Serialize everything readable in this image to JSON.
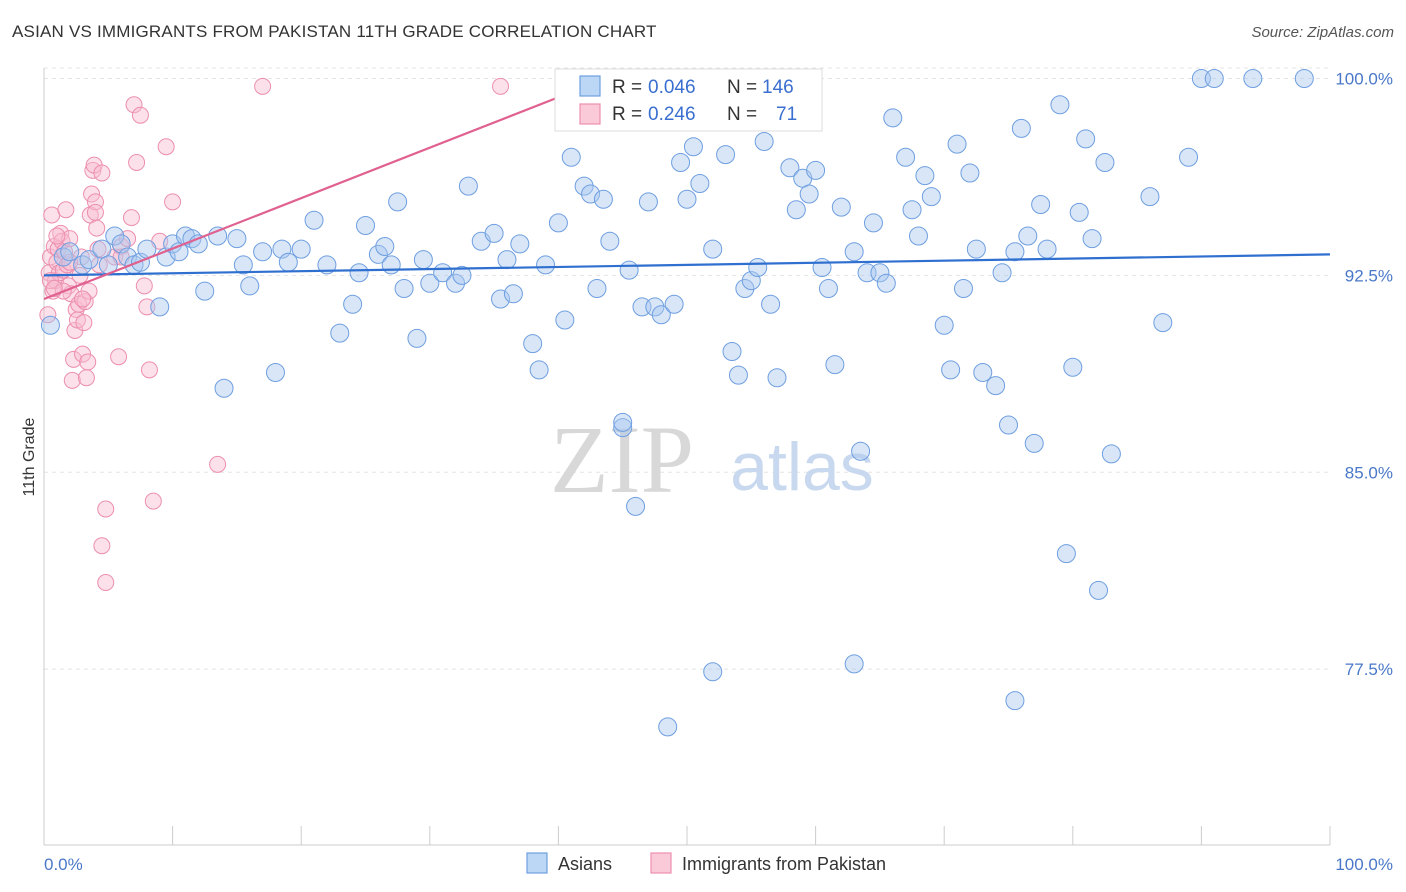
{
  "title": "ASIAN VS IMMIGRANTS FROM PAKISTAN 11TH GRADE CORRELATION CHART",
  "source": "Source: ZipAtlas.com",
  "watermark": {
    "zip": "ZIP",
    "atlas": "atlas"
  },
  "colors": {
    "asian_fill": "#a8c8f0",
    "asian_stroke": "#6f9fe0",
    "asian_line": "#2f6fcf",
    "pak_fill": "#f8bcd0",
    "pak_stroke": "#ec8fae",
    "pak_line": "#e0608f",
    "tick_text": "#4a78c8",
    "grid": "#e4e4e4"
  },
  "stats": {
    "asian": {
      "r_label": "R =",
      "r_value": "0.046",
      "n_label": "N =",
      "n_value": "146"
    },
    "pak": {
      "r_label": "R =",
      "r_value": "0.246",
      "n_label": "N =",
      "n_value": "71"
    }
  },
  "chart_data": {
    "type": "scatter",
    "title": "ASIAN VS IMMIGRANTS FROM PAKISTAN 11TH GRADE CORRELATION CHART",
    "xlabel": "",
    "ylabel": "11th Grade",
    "xlim": [
      0,
      100
    ],
    "ylim": [
      70.8,
      100.4
    ],
    "x_tick_labels": [
      "0.0%",
      "100.0%"
    ],
    "y_ticks": [
      77.5,
      85.0,
      92.5,
      100.0
    ],
    "y_tick_labels": [
      "77.5%",
      "85.0%",
      "92.5%",
      "100.0%"
    ],
    "grid": true,
    "legend_position": "bottom-center",
    "series": [
      {
        "name": "Asians",
        "trend": {
          "x": [
            0,
            100
          ],
          "y": [
            92.5,
            93.3
          ]
        },
        "points": [
          [
            0.5,
            90.6
          ],
          [
            1.5,
            93.2
          ],
          [
            2,
            93.4
          ],
          [
            3,
            92.9
          ],
          [
            3.5,
            93.1
          ],
          [
            4.5,
            93.5
          ],
          [
            5,
            92.9
          ],
          [
            5.5,
            94.0
          ],
          [
            6,
            93.7
          ],
          [
            6.5,
            93.2
          ],
          [
            7,
            92.9
          ],
          [
            7.5,
            93.0
          ],
          [
            8,
            93.5
          ],
          [
            9,
            91.3
          ],
          [
            9.5,
            93.2
          ],
          [
            10,
            93.7
          ],
          [
            10.5,
            93.4
          ],
          [
            11,
            94.0
          ],
          [
            11.5,
            93.9
          ],
          [
            12,
            93.7
          ],
          [
            12.5,
            91.9
          ],
          [
            13.5,
            94.0
          ],
          [
            14,
            88.2
          ],
          [
            15,
            93.9
          ],
          [
            15.5,
            92.9
          ],
          [
            16,
            92.1
          ],
          [
            17,
            93.4
          ],
          [
            18,
            88.8
          ],
          [
            18.5,
            93.5
          ],
          [
            19,
            93.0
          ],
          [
            20,
            93.5
          ],
          [
            21,
            94.6
          ],
          [
            22,
            92.9
          ],
          [
            23,
            90.3
          ],
          [
            24,
            91.4
          ],
          [
            24.5,
            92.6
          ],
          [
            25,
            94.4
          ],
          [
            26,
            93.3
          ],
          [
            26.5,
            93.6
          ],
          [
            27,
            92.9
          ],
          [
            27.5,
            95.3
          ],
          [
            28,
            92.0
          ],
          [
            29,
            90.1
          ],
          [
            29.5,
            93.1
          ],
          [
            30,
            92.2
          ],
          [
            31,
            92.6
          ],
          [
            32,
            92.2
          ],
          [
            32.5,
            92.5
          ],
          [
            33,
            95.9
          ],
          [
            34,
            93.8
          ],
          [
            35,
            94.1
          ],
          [
            35.5,
            91.6
          ],
          [
            36,
            93.1
          ],
          [
            36.5,
            91.8
          ],
          [
            37,
            93.7
          ],
          [
            38,
            89.9
          ],
          [
            38.5,
            88.9
          ],
          [
            39,
            92.9
          ],
          [
            40,
            94.5
          ],
          [
            40.5,
            90.8
          ],
          [
            41,
            97.0
          ],
          [
            42,
            95.9
          ],
          [
            42.5,
            95.6
          ],
          [
            43,
            92.0
          ],
          [
            43.5,
            95.4
          ],
          [
            44,
            93.8
          ],
          [
            45,
            86.7
          ],
          [
            45.5,
            92.7
          ],
          [
            46,
            83.7
          ],
          [
            46.5,
            91.3
          ],
          [
            47,
            95.3
          ],
          [
            47.5,
            91.3
          ],
          [
            48,
            91.0
          ],
          [
            49,
            91.4
          ],
          [
            49.5,
            96.8
          ],
          [
            50,
            95.4
          ],
          [
            50.5,
            97.4
          ],
          [
            51,
            96.0
          ],
          [
            52,
            93.5
          ],
          [
            53,
            97.1
          ],
          [
            53.5,
            89.6
          ],
          [
            54,
            88.7
          ],
          [
            54.5,
            92.0
          ],
          [
            55,
            92.3
          ],
          [
            55.5,
            92.8
          ],
          [
            56,
            97.6
          ],
          [
            56.5,
            91.4
          ],
          [
            57,
            88.6
          ],
          [
            58,
            96.6
          ],
          [
            58.5,
            95.0
          ],
          [
            59,
            96.2
          ],
          [
            59.5,
            95.6
          ],
          [
            60,
            96.5
          ],
          [
            60.5,
            92.8
          ],
          [
            61,
            92.0
          ],
          [
            61.5,
            89.1
          ],
          [
            62,
            95.1
          ],
          [
            63,
            93.4
          ],
          [
            63.5,
            85.8
          ],
          [
            64,
            92.6
          ],
          [
            64.5,
            94.5
          ],
          [
            65,
            92.6
          ],
          [
            65.5,
            92.2
          ],
          [
            66,
            98.5
          ],
          [
            67,
            97.0
          ],
          [
            67.5,
            95.0
          ],
          [
            68,
            94.0
          ],
          [
            68.5,
            96.3
          ],
          [
            69,
            95.5
          ],
          [
            70,
            90.6
          ],
          [
            70.5,
            88.9
          ],
          [
            71,
            97.5
          ],
          [
            71.5,
            92.0
          ],
          [
            72,
            96.4
          ],
          [
            72.5,
            93.5
          ],
          [
            73,
            88.8
          ],
          [
            74,
            88.3
          ],
          [
            74.5,
            92.6
          ],
          [
            75,
            86.8
          ],
          [
            75.5,
            93.4
          ],
          [
            76,
            98.1
          ],
          [
            76.5,
            94.0
          ],
          [
            77,
            86.1
          ],
          [
            77.5,
            95.2
          ],
          [
            78,
            93.5
          ],
          [
            79,
            99.0
          ],
          [
            79.5,
            81.9
          ],
          [
            80,
            89.0
          ],
          [
            80.5,
            94.9
          ],
          [
            81,
            97.7
          ],
          [
            81.5,
            93.9
          ],
          [
            82,
            80.5
          ],
          [
            82.5,
            96.8
          ],
          [
            83,
            85.7
          ],
          [
            86,
            95.5
          ],
          [
            87,
            90.7
          ],
          [
            89,
            97.0
          ],
          [
            90,
            100.0
          ],
          [
            91,
            100.0
          ],
          [
            94,
            100.0
          ],
          [
            98,
            100.0
          ],
          [
            48.5,
            75.3
          ],
          [
            52,
            77.4
          ],
          [
            63,
            77.7
          ],
          [
            75.5,
            76.3
          ],
          [
            45,
            86.9
          ]
        ]
      },
      {
        "name": "Immigrants from Pakistan",
        "trend": {
          "x": [
            0,
            40.6
          ],
          "y": [
            91.6,
            99.4
          ]
        },
        "points": [
          [
            0.3,
            91.0
          ],
          [
            0.4,
            92.6
          ],
          [
            0.5,
            93.2
          ],
          [
            0.6,
            94.8
          ],
          [
            0.7,
            91.9
          ],
          [
            0.8,
            93.6
          ],
          [
            0.9,
            92.3
          ],
          [
            1.0,
            93.0
          ],
          [
            1.1,
            93.5
          ],
          [
            1.2,
            92.6
          ],
          [
            1.3,
            94.1
          ],
          [
            1.4,
            93.8
          ],
          [
            1.5,
            92.7
          ],
          [
            1.6,
            93.4
          ],
          [
            1.7,
            95.0
          ],
          [
            1.8,
            92.9
          ],
          [
            1.9,
            92.1
          ],
          [
            2.0,
            93.9
          ],
          [
            2.1,
            91.8
          ],
          [
            2.2,
            88.5
          ],
          [
            2.3,
            89.3
          ],
          [
            2.4,
            90.4
          ],
          [
            2.5,
            91.2
          ],
          [
            2.6,
            90.8
          ],
          [
            2.7,
            91.4
          ],
          [
            2.8,
            92.5
          ],
          [
            2.9,
            93.2
          ],
          [
            3.0,
            89.5
          ],
          [
            3.1,
            90.7
          ],
          [
            3.2,
            91.5
          ],
          [
            3.3,
            88.6
          ],
          [
            3.4,
            89.2
          ],
          [
            3.5,
            91.9
          ],
          [
            3.6,
            94.8
          ],
          [
            3.7,
            95.6
          ],
          [
            3.8,
            96.5
          ],
          [
            3.9,
            96.7
          ],
          [
            4.0,
            95.3
          ],
          [
            4.1,
            94.3
          ],
          [
            4.2,
            93.5
          ],
          [
            4.3,
            92.9
          ],
          [
            4.5,
            96.4
          ],
          [
            4.8,
            83.6
          ],
          [
            4.5,
            82.2
          ],
          [
            4.8,
            80.8
          ],
          [
            5.5,
            93.2
          ],
          [
            5.8,
            89.4
          ],
          [
            6.0,
            93.6
          ],
          [
            6.5,
            93.9
          ],
          [
            6.8,
            94.7
          ],
          [
            7.0,
            99.0
          ],
          [
            7.2,
            96.8
          ],
          [
            7.5,
            98.6
          ],
          [
            7.8,
            92.1
          ],
          [
            8.0,
            91.3
          ],
          [
            8.2,
            88.9
          ],
          [
            8.5,
            83.9
          ],
          [
            9.0,
            93.8
          ],
          [
            9.5,
            97.4
          ],
          [
            10.0,
            95.3
          ],
          [
            13.5,
            85.3
          ],
          [
            17,
            99.7
          ],
          [
            35.5,
            99.7
          ],
          [
            0.5,
            92.3
          ],
          [
            1.0,
            94.0
          ],
          [
            1.5,
            91.9
          ],
          [
            2.0,
            93.0
          ],
          [
            3.0,
            91.6
          ],
          [
            4.0,
            94.9
          ],
          [
            6.0,
            93.2
          ],
          [
            0.8,
            92.0
          ]
        ]
      }
    ]
  },
  "legend": {
    "asians_label": "Asians",
    "pak_label": "Immigrants from Pakistan"
  }
}
